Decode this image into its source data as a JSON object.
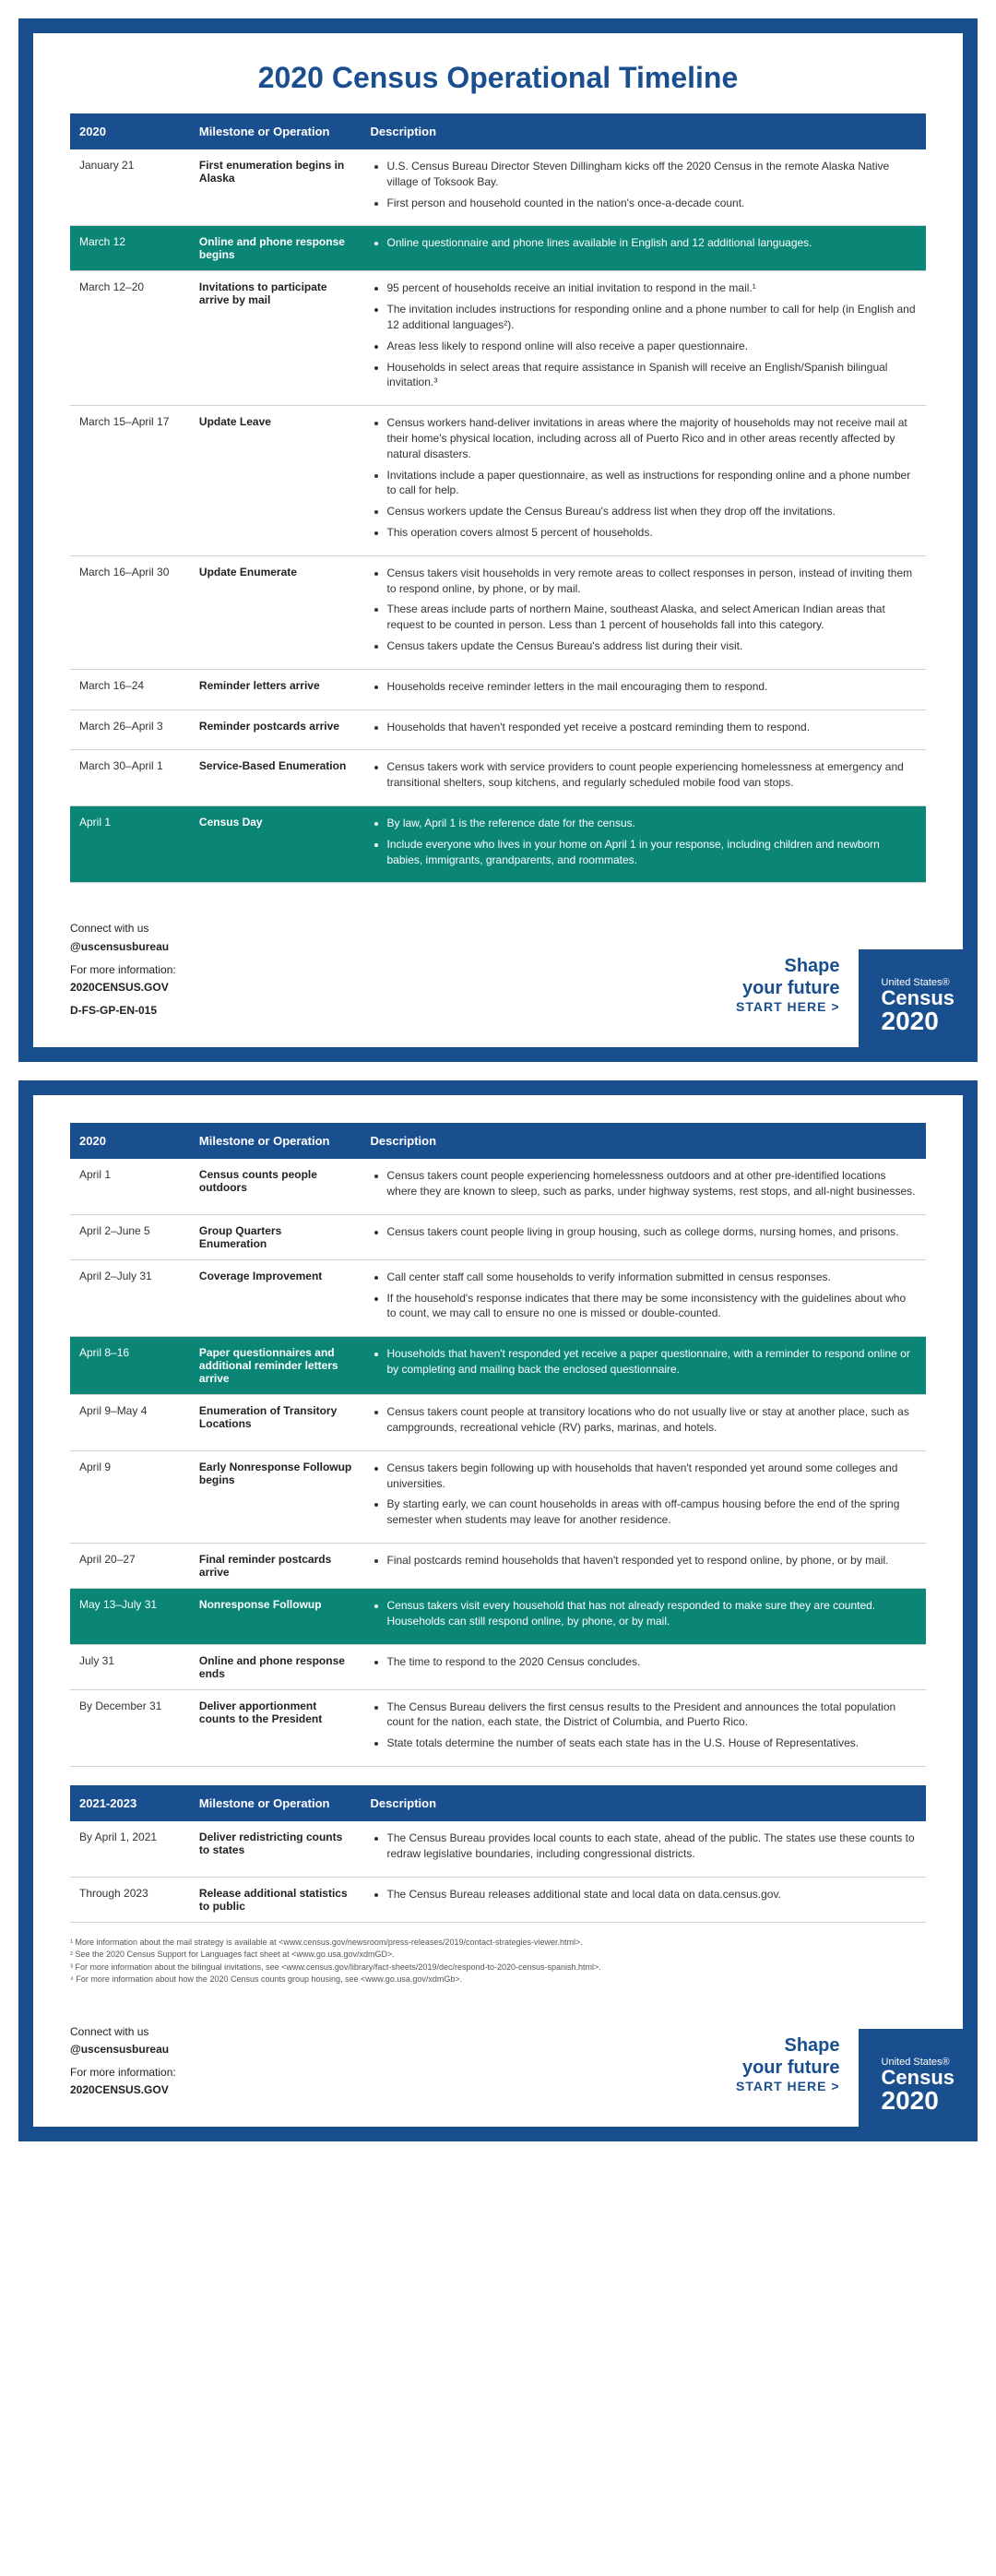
{
  "title": "2020 Census Operational Timeline",
  "headers": {
    "year": "2020",
    "milestone": "Milestone or Operation",
    "desc": "Description"
  },
  "headers2": {
    "year": "2021-2023",
    "milestone": "Milestone or Operation",
    "desc": "Description"
  },
  "page1_rows": [
    {
      "date": "January 21",
      "milestone": "First enumeration begins in Alaska",
      "bullets": [
        "U.S. Census Bureau Director Steven Dillingham kicks off the 2020 Census in the remote Alaska Native village of Toksook Bay.",
        "First person and household counted in the nation's once-a-decade count."
      ],
      "hl": false
    },
    {
      "date": "March 12",
      "milestone": "Online and phone response begins",
      "bullets": [
        "Online questionnaire and phone lines available in English and 12 additional languages."
      ],
      "hl": true
    },
    {
      "date": "March 12–20",
      "milestone": "Invitations to participate arrive by mail",
      "bullets": [
        "95 percent of households receive an initial invitation to respond in the mail.¹",
        "The invitation includes instructions for responding online and a phone number to call for help (in English and 12 additional languages²).",
        "Areas less likely to respond online will also receive a paper questionnaire.",
        "Households in select areas that require assistance in Spanish will receive an English/Spanish bilingual invitation.³"
      ],
      "hl": false
    },
    {
      "date": "March 15–April 17",
      "milestone": "Update Leave",
      "bullets": [
        "Census workers hand-deliver invitations in areas where the majority of households may not receive mail at their home's physical location, including across all of Puerto Rico and in other areas recently affected by natural disasters.",
        "Invitations include a paper questionnaire, as well as instructions for responding online and a phone number to call for help.",
        "Census workers update the Census Bureau's address list when they drop off the invitations.",
        "This operation covers almost 5 percent of households."
      ],
      "hl": false
    },
    {
      "date": "March 16–April 30",
      "milestone": "Update Enumerate",
      "bullets": [
        "Census takers visit households in very remote areas to collect responses in person, instead of inviting them to respond online, by phone, or by mail.",
        "These areas include parts of northern Maine, southeast Alaska, and select American Indian areas that request to be counted in person. Less than 1 percent of households fall into this category.",
        "Census takers update the Census Bureau's address list during their visit."
      ],
      "hl": false
    },
    {
      "date": "March 16–24",
      "milestone": "Reminder letters arrive",
      "bullets": [
        "Households receive reminder letters in the mail encouraging them to respond."
      ],
      "hl": false
    },
    {
      "date": "March 26–April 3",
      "milestone": "Reminder postcards arrive",
      "bullets": [
        "Households that haven't responded yet receive a postcard reminding them to respond."
      ],
      "hl": false
    },
    {
      "date": "March 30–April 1",
      "milestone": "Service-Based Enumeration",
      "bullets": [
        "Census takers work with service providers to count people experiencing homelessness at emergency and transitional shelters, soup kitchens, and regularly scheduled mobile food van stops."
      ],
      "hl": false
    },
    {
      "date": "April 1",
      "milestone": "Census Day",
      "bullets": [
        "By law, April 1 is the reference date for the census.",
        "Include everyone who lives in your home on April 1 in your response, including children and newborn babies, immigrants, grandparents, and roommates."
      ],
      "hl": true
    }
  ],
  "page2_rows": [
    {
      "date": "April 1",
      "milestone": "Census counts people outdoors",
      "bullets": [
        "Census takers count people experiencing homelessness outdoors and at other pre-identified locations where they are known to sleep, such as parks, under highway systems, rest stops, and all-night businesses."
      ],
      "hl": false
    },
    {
      "date": "April 2–June 5",
      "milestone": "Group Quarters Enumeration",
      "bullets": [
        "Census takers count people living in group housing, such as college dorms, nursing homes, and prisons."
      ],
      "hl": false
    },
    {
      "date": "April 2–July 31",
      "milestone": "Coverage Improvement",
      "bullets": [
        "Call center staff call some households to verify information submitted in census responses.",
        "If the household's response indicates that there may be some inconsistency with the guidelines about who to count, we may call to ensure no one is missed or double-counted."
      ],
      "hl": false
    },
    {
      "date": "April 8–16",
      "milestone": "Paper questionnaires and additional reminder letters arrive",
      "bullets": [
        "Households that haven't responded yet receive a paper questionnaire, with a reminder to respond online or by completing and mailing back the enclosed questionnaire."
      ],
      "hl": true
    },
    {
      "date": "April 9–May 4",
      "milestone": "Enumeration of Transitory Locations",
      "bullets": [
        "Census takers count people at transitory locations who do not usually live or stay at another place, such as campgrounds, recreational vehicle (RV) parks, marinas, and hotels."
      ],
      "hl": false
    },
    {
      "date": "April 9",
      "milestone": "Early Nonresponse Followup begins",
      "bullets": [
        "Census takers begin following up with households that haven't responded yet around some colleges and universities.",
        "By starting early, we can count households in areas with off-campus housing before the end of the spring semester when students may leave for another residence."
      ],
      "hl": false
    },
    {
      "date": "April 20–27",
      "milestone": "Final reminder postcards arrive",
      "bullets": [
        "Final postcards remind households that haven't responded yet to respond online, by phone, or by mail."
      ],
      "hl": false
    },
    {
      "date": "May 13–July 31",
      "milestone": "Nonresponse Followup",
      "bullets": [
        "Census takers visit every household that has not already responded to make sure they are counted. Households can still respond online, by phone, or by mail."
      ],
      "hl": true
    },
    {
      "date": "July 31",
      "milestone": "Online and phone response ends",
      "bullets": [
        "The time to respond to the 2020 Census concludes."
      ],
      "hl": false
    },
    {
      "date": "By December 31",
      "milestone": "Deliver apportionment counts to the President",
      "bullets": [
        "The Census Bureau delivers the first census results to the President and announces the total population count for the nation, each state, the District of Columbia, and Puerto Rico.",
        "State totals determine the number of seats each state has in the U.S. House of Representatives."
      ],
      "hl": false
    }
  ],
  "page2_rows_b": [
    {
      "date": "By April 1, 2021",
      "milestone": "Deliver redistricting counts to states",
      "bullets": [
        "The Census Bureau provides local counts to each state, ahead of the public. The states use these counts to redraw legislative boundaries, including congressional districts."
      ],
      "hl": false
    },
    {
      "date": "Through 2023",
      "milestone": "Release additional statistics to public",
      "bullets": [
        "The Census Bureau releases additional state and local data on data.census.gov."
      ],
      "hl": false
    }
  ],
  "footnotes": [
    "¹ More information about the mail strategy is available at <www.census.gov/newsroom/press-releases/2019/contact-strategies-viewer.html>.",
    "² See the 2020 Census Support for Languages fact sheet at <www.go.usa.gov/xdmGD>.",
    "³ For more information about the bilingual invitations, see <www.census.gov/library/fact-sheets/2019/dec/respond-to-2020-census-spanish.html>.",
    "⁴ For more information about how the 2020 Census counts group housing, see <www.go.usa.gov/xdmGb>."
  ],
  "footer": {
    "connect": "Connect with us",
    "handle": "@uscensusbureau",
    "moreinfo": "For more information:",
    "url": "2020CENSUS.GOV",
    "docid": "D-FS-GP-EN-015",
    "shape1": "Shape",
    "shape2": "your future",
    "start": "START HERE >",
    "us": "United States®",
    "census": "Census",
    "year": "2020"
  },
  "colors": {
    "blue": "#1a4f8f",
    "teal": "#0b8676"
  }
}
